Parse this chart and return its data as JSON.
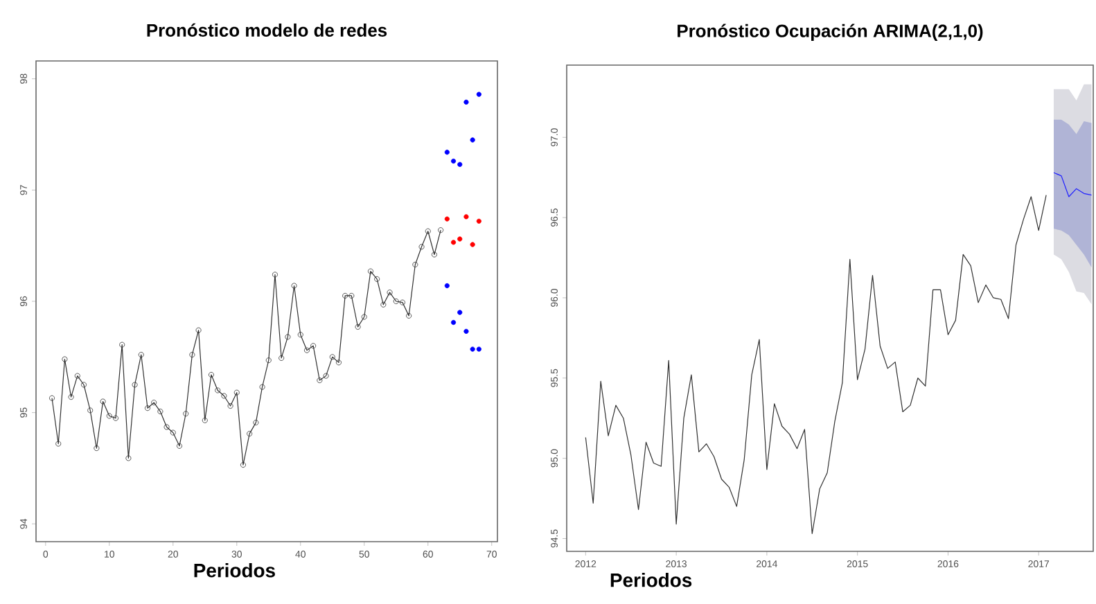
{
  "chart_data": [
    {
      "type": "line",
      "title": "Pronóstico modelo de redes",
      "xlabel": "Periodos",
      "marker": "circle",
      "xlim": [
        -1.5,
        70.9
      ],
      "ylim": [
        93.84,
        98.16
      ],
      "xticks": [
        0,
        10,
        20,
        30,
        40,
        50,
        60,
        70
      ],
      "yticks": [
        94,
        95,
        96,
        97,
        98
      ],
      "series": [
        {
          "color": "#303030",
          "x": [
            1,
            2,
            3,
            4,
            5,
            6,
            7,
            8,
            9,
            10,
            11,
            12,
            13,
            14,
            15,
            16,
            17,
            18,
            19,
            20,
            21,
            22,
            23,
            24,
            25,
            26,
            27,
            28,
            29,
            30,
            31,
            32,
            33,
            34,
            35,
            36,
            37,
            38,
            39,
            40,
            41,
            42,
            43,
            44,
            45,
            46,
            47,
            48,
            49,
            50,
            51,
            52,
            53,
            54,
            55,
            56,
            57,
            58,
            59,
            60,
            61,
            62
          ],
          "values": [
            95.13,
            94.72,
            95.48,
            95.14,
            95.33,
            95.25,
            95.02,
            94.68,
            95.1,
            94.97,
            94.95,
            95.61,
            94.59,
            95.25,
            95.52,
            95.04,
            95.09,
            95.01,
            94.87,
            94.82,
            94.7,
            94.99,
            95.52,
            95.74,
            94.93,
            95.34,
            95.2,
            95.15,
            95.06,
            95.18,
            94.53,
            94.81,
            94.91,
            95.23,
            95.47,
            96.24,
            95.49,
            95.68,
            96.14,
            95.7,
            95.56,
            95.6,
            95.29,
            95.33,
            95.5,
            95.45,
            96.05,
            96.05,
            95.77,
            95.86,
            96.27,
            96.2,
            95.97,
            96.08,
            96.0,
            95.99,
            95.87,
            96.33,
            96.49,
            96.63,
            96.42,
            96.64
          ]
        },
        {
          "type": "scatter",
          "color": "#ff0000",
          "x": [
            63,
            64,
            65,
            66,
            67,
            68
          ],
          "values": [
            96.74,
            96.53,
            96.56,
            96.76,
            96.51,
            96.72
          ]
        },
        {
          "type": "scatter",
          "color": "#0000ff",
          "x": [
            63,
            64,
            65,
            66,
            67,
            68,
            63,
            64,
            65,
            66,
            67,
            68
          ],
          "values": [
            97.34,
            97.26,
            97.23,
            97.79,
            97.45,
            97.86,
            96.14,
            95.81,
            95.9,
            95.73,
            95.57,
            95.57
          ]
        }
      ]
    },
    {
      "type": "line",
      "title": "Pronóstico Ocupación ARIMA(2,1,0)",
      "xlabel": "Periodos",
      "xlim": [
        "2011-10-16",
        "2017-08-08"
      ],
      "ylim": [
        94.42,
        97.45
      ],
      "xticks": [
        "2012",
        "2013",
        "2014",
        "2015",
        "2016",
        "2017"
      ],
      "yticks": [
        94.5,
        {
          "value": 95,
          "label": "95.0"
        },
        95.5,
        {
          "value": 96,
          "label": "96.0"
        },
        96.5,
        {
          "value": 97,
          "label": "97.0"
        }
      ],
      "series": [
        {
          "color": "#303030",
          "x": [
            "2012-01",
            "2012-02",
            "2012-03",
            "2012-04",
            "2012-05",
            "2012-06",
            "2012-07",
            "2012-08",
            "2012-09",
            "2012-10",
            "2012-11",
            "2012-12",
            "2013-01",
            "2013-02",
            "2013-03",
            "2013-04",
            "2013-05",
            "2013-06",
            "2013-07",
            "2013-08",
            "2013-09",
            "2013-10",
            "2013-11",
            "2013-12",
            "2014-01",
            "2014-02",
            "2014-03",
            "2014-04",
            "2014-05",
            "2014-06",
            "2014-07",
            "2014-08",
            "2014-09",
            "2014-10",
            "2014-11",
            "2014-12",
            "2015-01",
            "2015-02",
            "2015-03",
            "2015-04",
            "2015-05",
            "2015-06",
            "2015-07",
            "2015-08",
            "2015-09",
            "2015-10",
            "2015-11",
            "2015-12",
            "2016-01",
            "2016-02",
            "2016-03",
            "2016-04",
            "2016-05",
            "2016-06",
            "2016-07",
            "2016-08",
            "2016-09",
            "2016-10",
            "2016-11",
            "2016-12",
            "2017-01",
            "2017-02"
          ],
          "values": [
            95.13,
            94.72,
            95.48,
            95.14,
            95.33,
            95.25,
            95.02,
            94.68,
            95.1,
            94.97,
            94.95,
            95.61,
            94.59,
            95.25,
            95.52,
            95.04,
            95.09,
            95.01,
            94.87,
            94.82,
            94.7,
            94.99,
            95.52,
            95.74,
            94.93,
            95.34,
            95.2,
            95.15,
            95.06,
            95.18,
            94.53,
            94.81,
            94.91,
            95.23,
            95.47,
            96.24,
            95.49,
            95.68,
            96.14,
            95.7,
            95.56,
            95.6,
            95.29,
            95.33,
            95.5,
            95.45,
            96.05,
            96.05,
            95.77,
            95.86,
            96.27,
            96.2,
            95.97,
            96.08,
            96.0,
            95.99,
            95.87,
            96.33,
            96.49,
            96.63,
            96.42,
            96.64
          ]
        },
        {
          "type": "area",
          "color": "#dcdce2",
          "x": [
            "2017-03",
            "2017-04",
            "2017-05",
            "2017-06",
            "2017-07",
            "2017-08"
          ],
          "values": [
            null,
            null,
            null,
            null,
            null,
            null
          ],
          "lower": [
            96.27,
            96.24,
            96.16,
            96.04,
            96.03,
            95.96
          ],
          "upper": [
            97.3,
            97.3,
            97.3,
            97.23,
            97.33,
            97.33
          ]
        },
        {
          "type": "area",
          "color": "#b0b4d6",
          "x": [
            "2017-03",
            "2017-04",
            "2017-05",
            "2017-06",
            "2017-07",
            "2017-08"
          ],
          "values": [
            null,
            null,
            null,
            null,
            null,
            null
          ],
          "lower": [
            96.43,
            96.42,
            96.39,
            96.33,
            96.27,
            96.19
          ],
          "upper": [
            97.11,
            97.11,
            97.08,
            97.02,
            97.1,
            97.09
          ]
        },
        {
          "type": "line",
          "color": "#2020ff",
          "x": [
            "2017-03",
            "2017-04",
            "2017-05",
            "2017-06",
            "2017-07",
            "2017-08"
          ],
          "values": [
            96.78,
            96.76,
            96.63,
            96.68,
            96.65,
            96.64
          ]
        }
      ]
    }
  ]
}
